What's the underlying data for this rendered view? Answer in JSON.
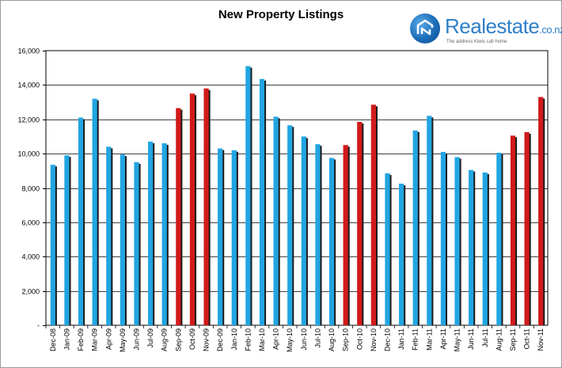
{
  "header": {
    "title": "New Property Listings"
  },
  "logo": {
    "name": "Realestate",
    "suffix": ".co.nz",
    "tagline": "The address Kiwis call home"
  },
  "colors": {
    "blue_bar": "#21a5e2",
    "red_bar": "#d11a1a",
    "bar_shadow": "#1b1b1b",
    "grid": "#000000"
  },
  "chart_data": {
    "type": "bar",
    "title": "New Property Listings",
    "xlabel": "",
    "ylabel": "",
    "ylim": [
      0,
      16000
    ],
    "y_ticks": [
      "-",
      "2,000",
      "4,000",
      "6,000",
      "8,000",
      "10,000",
      "12,000",
      "14,000",
      "16,000"
    ],
    "grid": true,
    "categories": [
      "Dec-08",
      "Jan-09",
      "Feb-09",
      "Mar-09",
      "Apr-09",
      "May-09",
      "Jun-09",
      "Jul-09",
      "Aug-09",
      "Sep-09",
      "Oct-09",
      "Nov-09",
      "Dec-09",
      "Jan-10",
      "Feb-10",
      "Mar-10",
      "Apr-10",
      "May-10",
      "Jun-10",
      "Jul-10",
      "Aug-10",
      "Sep-10",
      "Oct-10",
      "Nov-10",
      "Dec-10",
      "Jan-11",
      "Feb-11",
      "Mar-11",
      "Apr-11",
      "May-11",
      "Jun-11",
      "Jul-11",
      "Aug-11",
      "Sep-11",
      "Oct-11",
      "Nov-11"
    ],
    "values": [
      9350,
      9900,
      12100,
      13200,
      10400,
      9950,
      9500,
      10700,
      10600,
      12650,
      13500,
      13800,
      10300,
      10200,
      15100,
      14350,
      12150,
      11650,
      11000,
      10550,
      9750,
      10500,
      11850,
      12850,
      8850,
      8250,
      11350,
      12200,
      10100,
      9800,
      9050,
      8900,
      10050,
      11050,
      11250,
      13300
    ],
    "bar_colors": [
      "blue",
      "blue",
      "blue",
      "blue",
      "blue",
      "blue",
      "blue",
      "blue",
      "blue",
      "red",
      "red",
      "red",
      "blue",
      "blue",
      "blue",
      "blue",
      "blue",
      "blue",
      "blue",
      "blue",
      "blue",
      "red",
      "red",
      "red",
      "blue",
      "blue",
      "blue",
      "blue",
      "blue",
      "blue",
      "blue",
      "blue",
      "blue",
      "red",
      "red",
      "red"
    ]
  }
}
